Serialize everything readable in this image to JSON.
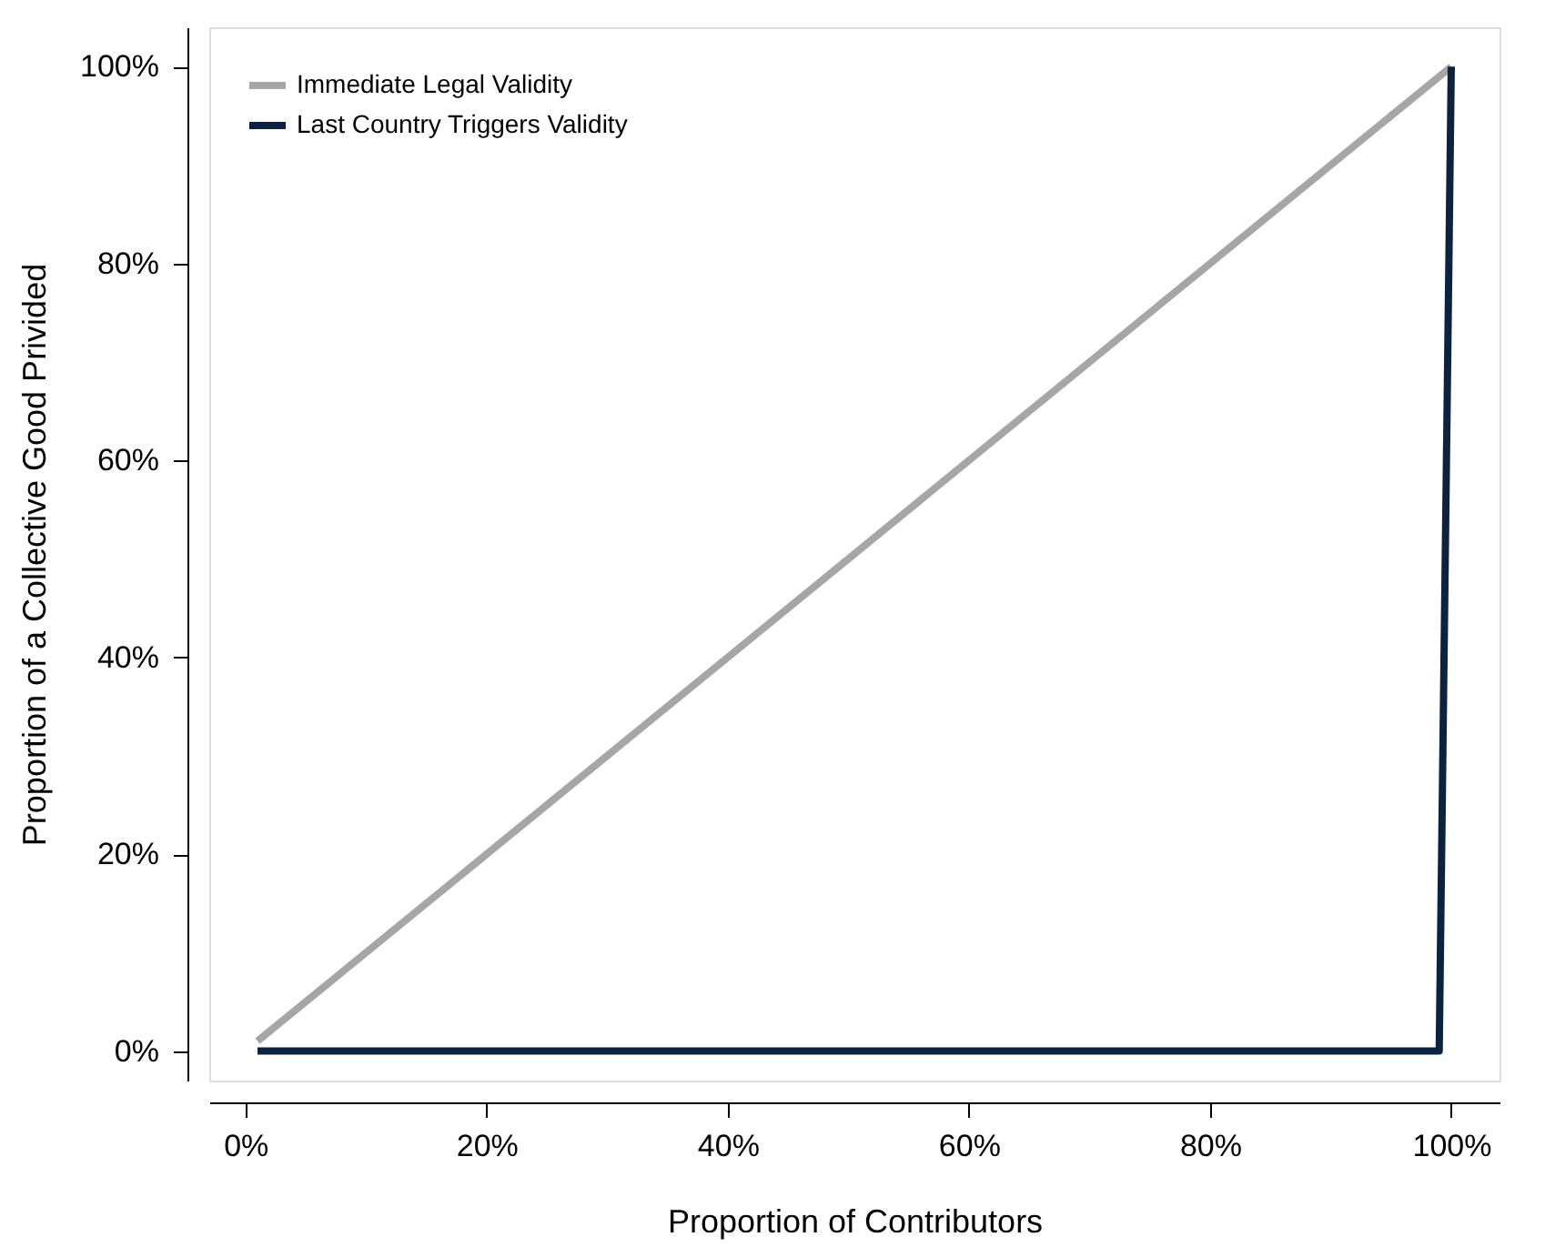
{
  "chart_data": {
    "type": "line",
    "xlabel": "Proportion of Contributors",
    "ylabel": "Proportion of a Collective Good Privided",
    "xlim": [
      -3,
      104
    ],
    "ylim": [
      -3,
      104
    ],
    "xticks": [
      {
        "value": 0,
        "label": "0%"
      },
      {
        "value": 20,
        "label": "20%"
      },
      {
        "value": 40,
        "label": "40%"
      },
      {
        "value": 60,
        "label": "60%"
      },
      {
        "value": 80,
        "label": "80%"
      },
      {
        "value": 100,
        "label": "100%"
      }
    ],
    "yticks": [
      {
        "value": 0,
        "label": "0%"
      },
      {
        "value": 20,
        "label": "20%"
      },
      {
        "value": 40,
        "label": "40%"
      },
      {
        "value": 60,
        "label": "60%"
      },
      {
        "value": 80,
        "label": "80%"
      },
      {
        "value": 100,
        "label": "100%"
      }
    ],
    "series": [
      {
        "name": "Immediate Legal Validity",
        "color": "#a6a6a6",
        "x": [
          1,
          100
        ],
        "values": [
          1,
          100
        ]
      },
      {
        "name": "Last Country Triggers Validity",
        "color": "#0c2340",
        "x": [
          1,
          99,
          100
        ],
        "values": [
          0,
          0,
          100
        ]
      }
    ],
    "legend": "top left",
    "grid": false,
    "marker": "none",
    "line_style": "solid"
  }
}
